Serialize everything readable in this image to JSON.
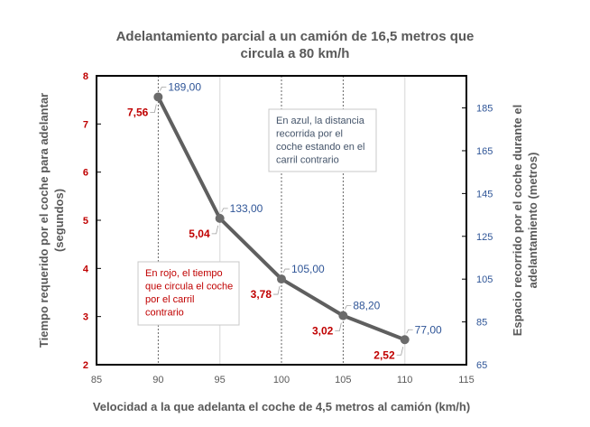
{
  "chart_data": {
    "type": "line",
    "title": [
      "Adelantamiento parcial a un camión de 16,5 metros que",
      "circula a 80 km/h"
    ],
    "xlabel": "Velocidad a la que adelanta el coche de 4,5 metros al camión (km/h)",
    "ylabel_left": [
      "Tiempo requerido por el coche para adelantar",
      "(segundos)"
    ],
    "ylabel_right": [
      "Espacio recorrido por el coche durante el",
      "adelantamiento (metros)"
    ],
    "xlim": [
      85,
      115
    ],
    "x_ticks": [
      85,
      90,
      95,
      100,
      105,
      110,
      115
    ],
    "ylim_left": [
      2,
      8
    ],
    "y_ticks_left": [
      2,
      3,
      4,
      5,
      6,
      7,
      8
    ],
    "ylim_right": [
      65,
      200
    ],
    "y_ticks_right": [
      65,
      85,
      105,
      125,
      145,
      165,
      185
    ],
    "x": [
      90,
      95,
      100,
      105,
      110
    ],
    "series": [
      {
        "axis": "left",
        "values": [
          7.56,
          5.04,
          3.78,
          3.02,
          2.52
        ],
        "labels": [
          "7,56",
          "5,04",
          "3,78",
          "3,02",
          "2,52"
        ],
        "label_color": "#C00000"
      },
      {
        "axis": "right",
        "values": [
          189,
          133,
          105,
          88.2,
          77
        ],
        "labels": [
          "189,00",
          "133,00",
          "105,00",
          "88,20",
          "77,00"
        ],
        "label_color": "#2F5597"
      }
    ],
    "line_color": "#5F5F5F",
    "left_axis_color": "#C00000",
    "right_axis_color": "#2F5597",
    "annotations": [
      {
        "lines": [
          "En azul, la distancia",
          "recorrida por el",
          "coche estando en el",
          "carril contrario"
        ],
        "color": "#44546A"
      },
      {
        "lines": [
          "En rojo, el tiempo",
          "que circula el coche",
          "por el carril",
          "contrario"
        ],
        "color": "#C00000"
      }
    ]
  }
}
